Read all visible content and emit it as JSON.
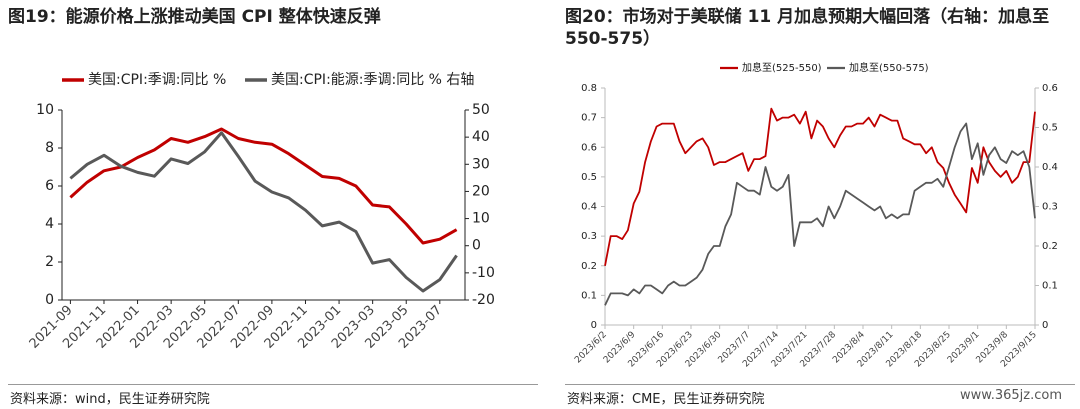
{
  "chart_data": [
    {
      "type": "line",
      "title": "图19：能源价格上涨推动美国 CPI 整体快速反弹",
      "source": "资料来源：wind，民生证券研究院",
      "categories": [
        "2021-09",
        null,
        "2021-11",
        null,
        "2022-01",
        null,
        "2022-03",
        null,
        "2022-05",
        null,
        "2022-07",
        null,
        "2022-09",
        null,
        "2022-11",
        null,
        "2023-01",
        null,
        "2023-03",
        null,
        "2023-05",
        null,
        "2023-07",
        null
      ],
      "series": [
        {
          "name": "美国:CPI:季调:同比 %",
          "color": "#c00000",
          "values": [
            5.4,
            6.2,
            6.8,
            7.0,
            7.5,
            7.9,
            8.5,
            8.3,
            8.6,
            9.0,
            8.5,
            8.3,
            8.2,
            7.7,
            7.1,
            6.5,
            6.4,
            6.0,
            5.0,
            4.9,
            4.0,
            3.0,
            3.2,
            3.7
          ]
        },
        {
          "name": "美国:CPI:能源:季调:同比 % 右轴",
          "color": "#595959",
          "axis": "y2",
          "values": [
            24.8,
            30.0,
            33.3,
            29.3,
            27.0,
            25.6,
            32.0,
            30.3,
            34.6,
            41.6,
            32.9,
            23.8,
            19.8,
            17.6,
            13.1,
            7.3,
            8.7,
            5.2,
            -6.4,
            -5.1,
            -11.7,
            -16.7,
            -12.5,
            -3.6
          ]
        }
      ],
      "ylim": [
        0,
        10
      ],
      "yticks": [
        0,
        2,
        4,
        6,
        8,
        10
      ],
      "y2lim": [
        -20,
        50
      ],
      "y2ticks": [
        -20,
        -10,
        0,
        10,
        20,
        30,
        40,
        50
      ],
      "grid": false
    },
    {
      "type": "line",
      "title": "图20：市场对于美联储  11  月加息预期大幅回落（右轴：加息至 550-575）",
      "source": "资料来源：CME，民生证券研究院",
      "categories": [
        "2023/6/2",
        null,
        null,
        null,
        null,
        "2023/6/9",
        null,
        null,
        null,
        null,
        "2023/6/16",
        null,
        null,
        null,
        null,
        "2023/6/23",
        null,
        null,
        null,
        null,
        "2023/6/30",
        null,
        null,
        null,
        null,
        "2023/7/7",
        null,
        null,
        null,
        null,
        "2023/7/14",
        null,
        null,
        null,
        null,
        "2023/7/21",
        null,
        null,
        null,
        null,
        "2023/7/28",
        null,
        null,
        null,
        null,
        "2023/8/4",
        null,
        null,
        null,
        null,
        "2023/8/11",
        null,
        null,
        null,
        null,
        "2023/8/18",
        null,
        null,
        null,
        null,
        "2023/8/25",
        null,
        null,
        null,
        null,
        "2023/9/1",
        null,
        null,
        null,
        null,
        "2023/9/8",
        null,
        null,
        null,
        null,
        "2023/9/15"
      ],
      "series": [
        {
          "name": "加息至(525-550)",
          "color": "#c00000",
          "values": [
            0.2,
            0.3,
            0.3,
            0.29,
            0.32,
            0.41,
            0.45,
            0.55,
            0.62,
            0.67,
            0.68,
            0.68,
            0.68,
            0.62,
            0.58,
            0.6,
            0.62,
            0.63,
            0.6,
            0.54,
            0.55,
            0.55,
            0.56,
            0.57,
            0.58,
            0.52,
            0.56,
            0.56,
            0.57,
            0.73,
            0.69,
            0.7,
            0.7,
            0.71,
            0.68,
            0.72,
            0.63,
            0.69,
            0.67,
            0.63,
            0.6,
            0.64,
            0.67,
            0.67,
            0.68,
            0.68,
            0.7,
            0.67,
            0.71,
            0.7,
            0.69,
            0.69,
            0.63,
            0.62,
            0.61,
            0.61,
            0.58,
            0.6,
            0.55,
            0.53,
            0.48,
            0.44,
            0.41,
            0.38,
            0.53,
            0.48,
            0.6,
            0.55,
            0.52,
            0.5,
            0.52,
            0.48,
            0.5,
            0.55,
            0.55,
            0.72
          ]
        },
        {
          "name": "加息至(550-575)",
          "color": "#595959",
          "axis": "y2",
          "values": [
            0.05,
            0.08,
            0.08,
            0.08,
            0.075,
            0.09,
            0.08,
            0.1,
            0.1,
            0.09,
            0.08,
            0.1,
            0.11,
            0.1,
            0.1,
            0.11,
            0.12,
            0.14,
            0.18,
            0.2,
            0.2,
            0.25,
            0.28,
            0.36,
            0.35,
            0.34,
            0.34,
            0.33,
            0.4,
            0.35,
            0.34,
            0.35,
            0.38,
            0.2,
            0.26,
            0.26,
            0.26,
            0.27,
            0.25,
            0.3,
            0.27,
            0.3,
            0.34,
            0.33,
            0.32,
            0.31,
            0.3,
            0.29,
            0.3,
            0.27,
            0.28,
            0.27,
            0.28,
            0.28,
            0.34,
            0.35,
            0.36,
            0.36,
            0.37,
            0.35,
            0.4,
            0.45,
            0.49,
            0.51,
            0.42,
            0.46,
            0.38,
            0.43,
            0.45,
            0.42,
            0.41,
            0.44,
            0.43,
            0.44,
            0.4,
            0.27
          ]
        }
      ],
      "ylim": [
        0,
        0.8
      ],
      "yticks": [
        0,
        0.1,
        0.2,
        0.3,
        0.4,
        0.5,
        0.6,
        0.7,
        0.8
      ],
      "y2lim": [
        0,
        0.6
      ],
      "y2ticks": [
        0,
        0.1,
        0.2,
        0.3,
        0.4,
        0.5,
        0.6
      ],
      "grid": false
    }
  ],
  "watermark": "www.365jz.com"
}
